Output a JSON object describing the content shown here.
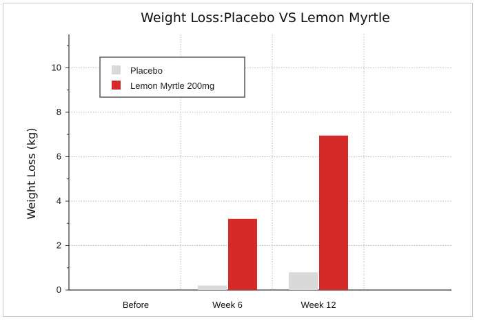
{
  "chart_data": {
    "type": "bar",
    "title": "Weight Loss:Placebo VS Lemon Myrtle",
    "xlabel": "",
    "ylabel": "Weight Loss (kg)",
    "categories": [
      "Before",
      "Week 6",
      "Week 12"
    ],
    "series": [
      {
        "name": "Placebo",
        "color": "#d9d9d9",
        "values": [
          0,
          0.2,
          0.8
        ]
      },
      {
        "name": "Lemon Myrtle  200mg",
        "color": "#d42a2a",
        "values": [
          0,
          3.2,
          6.95
        ]
      }
    ],
    "ylim": [
      0,
      11.5
    ],
    "yticks": [
      0,
      2,
      4,
      6,
      8,
      10
    ],
    "grid": true,
    "legend_position": "top-left"
  }
}
